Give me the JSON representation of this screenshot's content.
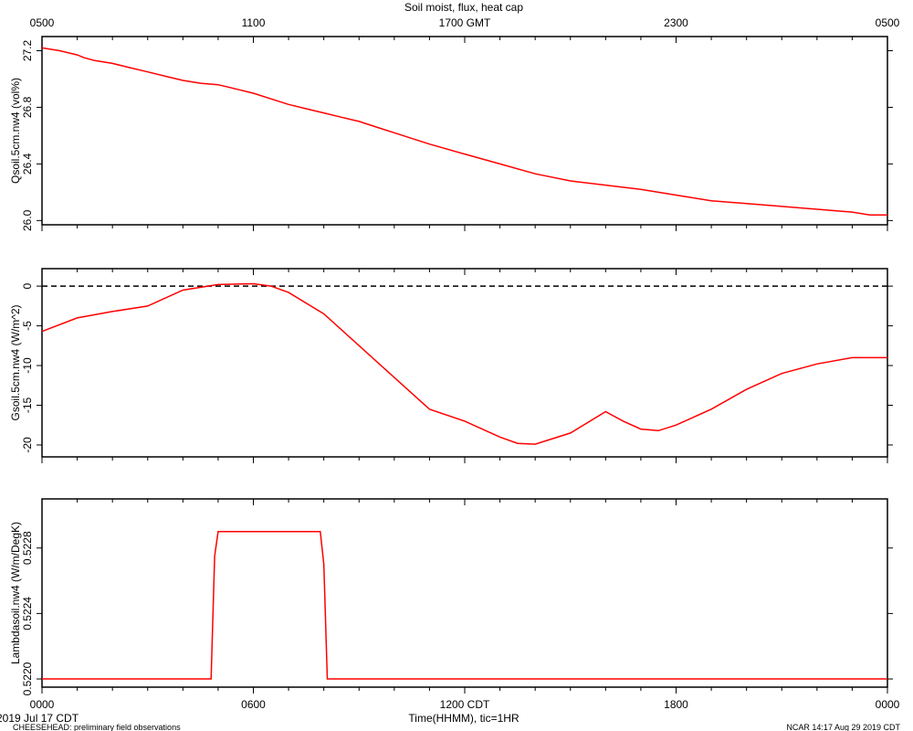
{
  "title": "Soil moist, flux, heat cap",
  "top_axis": {
    "labels": [
      "0500",
      "1100",
      "1700 GMT",
      "2300",
      "0500"
    ]
  },
  "bottom_axis": {
    "labels": [
      "0000",
      "0600",
      "1200 CDT",
      "1800",
      "0000"
    ],
    "title": "Time(HHMM), tic=1HR"
  },
  "footer": {
    "date": "2019 Jul 17 CDT",
    "left": "CHEESEHEAD: preliminary field observations",
    "right": "NCAR 14:17 Aug 29 2019 CDT"
  },
  "line_color": "#ff0000",
  "chart_data": [
    {
      "type": "line",
      "ylabel": "Qsoil.5cm.nw4 (vol%)",
      "ylim": [
        25.97,
        27.3
      ],
      "yticks": [
        26.0,
        26.4,
        26.8,
        27.2
      ],
      "ytick_labels": [
        "26.0",
        "26.4",
        "26.8",
        "27.2"
      ],
      "x": [
        0,
        0.5,
        1,
        1.2,
        1.5,
        2,
        2.5,
        3,
        3.5,
        4,
        4.5,
        5,
        5.5,
        6,
        6.5,
        7,
        7.5,
        8,
        8.5,
        9,
        9.5,
        10,
        11,
        12,
        13,
        14,
        15,
        16,
        17,
        18,
        19,
        20,
        21,
        22,
        23,
        23.5,
        24
      ],
      "values": [
        27.22,
        27.2,
        27.17,
        27.15,
        27.13,
        27.11,
        27.08,
        27.05,
        27.02,
        26.99,
        26.97,
        26.96,
        26.93,
        26.9,
        26.86,
        26.82,
        26.79,
        26.76,
        26.73,
        26.7,
        26.66,
        26.62,
        26.54,
        26.47,
        26.4,
        26.33,
        26.28,
        26.25,
        26.22,
        26.18,
        26.14,
        26.12,
        26.1,
        26.08,
        26.06,
        26.04,
        26.04
      ]
    },
    {
      "type": "line",
      "ylabel": "Gsoil.5cm.nw4 (W/m^2)",
      "ylim": [
        -21.5,
        2.2
      ],
      "yticks": [
        0,
        -5,
        -10,
        -15,
        -20
      ],
      "ytick_labels": [
        "0",
        "-5",
        "-10",
        "-15",
        "-20"
      ],
      "reference_line": 0,
      "x": [
        0,
        1,
        2,
        3,
        4,
        5,
        6,
        6.5,
        7,
        8,
        9,
        10,
        11,
        12,
        13,
        13.5,
        14,
        15,
        16,
        16.5,
        17,
        17.5,
        18,
        19,
        20,
        21,
        22,
        23,
        23.5,
        24
      ],
      "values": [
        -5.7,
        -4.0,
        -3.2,
        -2.5,
        -0.5,
        0.2,
        0.3,
        0.0,
        -0.8,
        -3.5,
        -7.5,
        -11.5,
        -15.5,
        -17.0,
        -19.0,
        -19.8,
        -19.9,
        -18.5,
        -15.8,
        -17.0,
        -18.0,
        -18.2,
        -17.5,
        -15.5,
        -13.0,
        -11.0,
        -9.8,
        -9.0,
        -9.0,
        -9.0
      ]
    },
    {
      "type": "line",
      "ylabel": "Lambdasoil.nw4 (W/m/DegK)",
      "ylim": [
        0.52195,
        0.5231
      ],
      "yticks": [
        0.522,
        0.5224,
        0.5228
      ],
      "ytick_labels": [
        "0.5220",
        "0.5224",
        "0.5228"
      ],
      "x": [
        0,
        4.8,
        4.9,
        5.0,
        7.9,
        8.0,
        8.1,
        24
      ],
      "values": [
        0.522,
        0.522,
        0.52275,
        0.5229,
        0.5229,
        0.5227,
        0.522,
        0.522
      ]
    }
  ]
}
